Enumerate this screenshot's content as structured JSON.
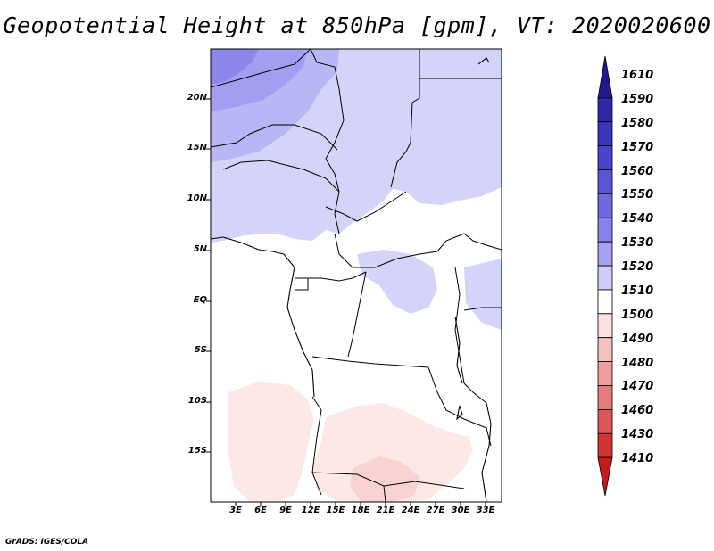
{
  "title": "Geopotential Height at 850hPa [gpm], VT: 2020020600",
  "credit": "GrADS: IGES/COLA",
  "map": {
    "lat_labels": [
      "20N",
      "15N",
      "10N",
      "5N",
      "EQ",
      "5S",
      "10S",
      "15S"
    ],
    "lon_labels": [
      "3E",
      "6E",
      "9E",
      "12E",
      "15E",
      "18E",
      "21E",
      "24E",
      "27E",
      "30E",
      "33E"
    ]
  },
  "colorbar": {
    "levels": [
      "1610",
      "1590",
      "1580",
      "1570",
      "1560",
      "1550",
      "1540",
      "1530",
      "1520",
      "1510",
      "1500",
      "1490",
      "1480",
      "1470",
      "1460",
      "1430",
      "1410"
    ],
    "colors": [
      "#1f1a8f",
      "#2e28a8",
      "#3c36bd",
      "#4a44cc",
      "#5b55d8",
      "#6f69e2",
      "#8782ea",
      "#a6a2f0",
      "#cfcdf7",
      "#ffffff",
      "#fbe0e0",
      "#f5c0c0",
      "#ee9e9e",
      "#e57b7b",
      "#db5757",
      "#d23434",
      "#c51b1b"
    ]
  },
  "field_colors": {
    "c1530": "#d4d3fa",
    "c1540": "#b9b6f5",
    "c1550": "#a39ef2",
    "c1560": "#8d87ec",
    "c1500": "#fde8e8",
    "c1490": "#f9d2d2"
  }
}
